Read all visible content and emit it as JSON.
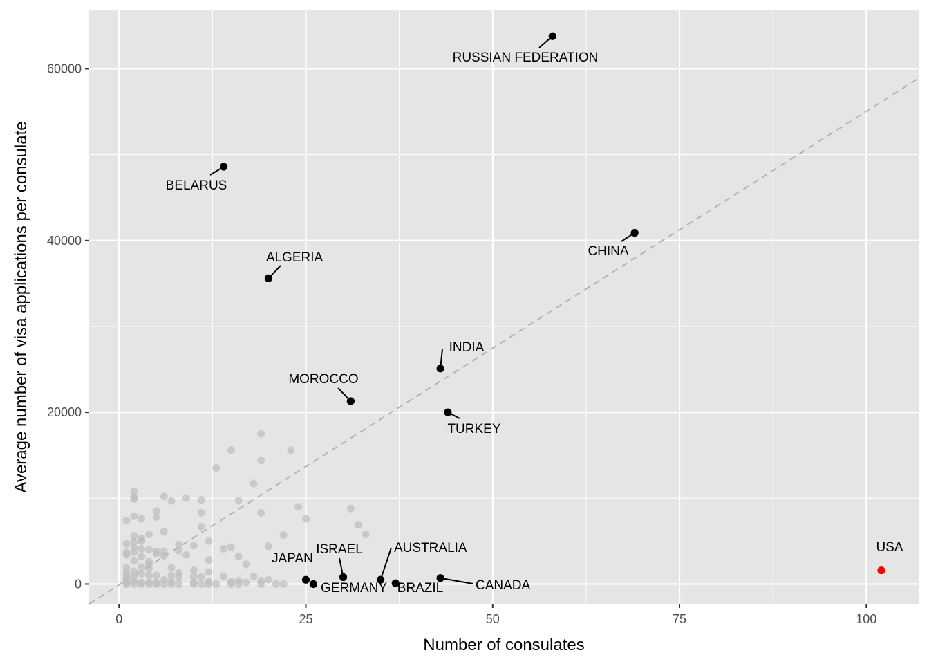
{
  "chart_data": {
    "type": "scatter",
    "title": "",
    "xlabel": "Number of consulates",
    "ylabel": "Average number of visa applications per consulate",
    "xlim": [
      -4,
      107
    ],
    "ylim": [
      -2300,
      66800
    ],
    "x_ticks": [
      0,
      25,
      50,
      75,
      100
    ],
    "y_ticks": [
      0,
      20000,
      40000,
      60000
    ],
    "x_tick_labels": [
      "0",
      "25",
      "50",
      "75",
      "100"
    ],
    "y_tick_labels": [
      "0",
      "20000",
      "40000",
      "60000"
    ],
    "grid": true,
    "legend": "none",
    "colors": {
      "panel": "#e5e5e5",
      "grid": "#ffffff",
      "background_points": "#bdbdbd",
      "highlight_points": "#000000",
      "usa_point": "#ff0000",
      "trend_line": "#b3b3b3"
    },
    "trend_line": {
      "style": "dashed",
      "points": [
        [
          -4,
          -2300
        ],
        [
          107,
          58900
        ]
      ]
    },
    "labeled_points": [
      {
        "label": "RUSSIAN FEDERATION",
        "x": 58,
        "y": 63800
      },
      {
        "label": "BELARUS",
        "x": 14,
        "y": 48600
      },
      {
        "label": "CHINA",
        "x": 69,
        "y": 40900
      },
      {
        "label": "ALGERIA",
        "x": 20,
        "y": 35600
      },
      {
        "label": "INDIA",
        "x": 43,
        "y": 25100
      },
      {
        "label": "MOROCCO",
        "x": 31,
        "y": 21300
      },
      {
        "label": "TURKEY",
        "x": 44,
        "y": 20000
      },
      {
        "label": "JAPAN",
        "x": 25,
        "y": 500
      },
      {
        "label": "GERMANY",
        "x": 26,
        "y": 0
      },
      {
        "label": "ISRAEL",
        "x": 30,
        "y": 800
      },
      {
        "label": "AUSTRALIA",
        "x": 35,
        "y": 500
      },
      {
        "label": "BRAZIL",
        "x": 37,
        "y": 100
      },
      {
        "label": "CANADA",
        "x": 43,
        "y": 700
      },
      {
        "label": "USA",
        "x": 102,
        "y": 1600
      }
    ],
    "background_points": [
      [
        1,
        7400
      ],
      [
        1,
        4700
      ],
      [
        1,
        3700
      ],
      [
        1,
        3400
      ],
      [
        1,
        1900
      ],
      [
        1,
        1300
      ],
      [
        1,
        900
      ],
      [
        1,
        600
      ],
      [
        1,
        300
      ],
      [
        1,
        100
      ],
      [
        1,
        0
      ],
      [
        2,
        10800
      ],
      [
        2,
        10100
      ],
      [
        2,
        9900
      ],
      [
        2,
        7900
      ],
      [
        2,
        5600
      ],
      [
        2,
        4900
      ],
      [
        2,
        4200
      ],
      [
        2,
        3700
      ],
      [
        2,
        2700
      ],
      [
        2,
        1500
      ],
      [
        2,
        900
      ],
      [
        2,
        300
      ],
      [
        2,
        0
      ],
      [
        3,
        7600
      ],
      [
        3,
        5300
      ],
      [
        3,
        5000
      ],
      [
        3,
        4100
      ],
      [
        3,
        3200
      ],
      [
        3,
        2000
      ],
      [
        3,
        1200
      ],
      [
        3,
        200
      ],
      [
        3,
        0
      ],
      [
        4,
        5800
      ],
      [
        4,
        4000
      ],
      [
        4,
        2600
      ],
      [
        4,
        2300
      ],
      [
        4,
        1800
      ],
      [
        4,
        1000
      ],
      [
        4,
        200
      ],
      [
        4,
        0
      ],
      [
        5,
        8500
      ],
      [
        5,
        7800
      ],
      [
        5,
        3800
      ],
      [
        5,
        3500
      ],
      [
        5,
        1000
      ],
      [
        5,
        200
      ],
      [
        5,
        0
      ],
      [
        6,
        10200
      ],
      [
        6,
        6100
      ],
      [
        6,
        3800
      ],
      [
        6,
        3300
      ],
      [
        6,
        500
      ],
      [
        6,
        0
      ],
      [
        7,
        9700
      ],
      [
        7,
        1900
      ],
      [
        7,
        1000
      ],
      [
        7,
        300
      ],
      [
        7,
        0
      ],
      [
        8,
        4600
      ],
      [
        8,
        3900
      ],
      [
        8,
        1300
      ],
      [
        8,
        800
      ],
      [
        8,
        0
      ],
      [
        9,
        10000
      ],
      [
        9,
        3400
      ],
      [
        10,
        4500
      ],
      [
        10,
        1600
      ],
      [
        10,
        900
      ],
      [
        10,
        200
      ],
      [
        10,
        0
      ],
      [
        11,
        9800
      ],
      [
        11,
        8300
      ],
      [
        11,
        6700
      ],
      [
        11,
        800
      ],
      [
        11,
        0
      ],
      [
        12,
        5000
      ],
      [
        12,
        2800
      ],
      [
        12,
        1400
      ],
      [
        12,
        300
      ],
      [
        12,
        0
      ],
      [
        13,
        13500
      ],
      [
        13,
        0
      ],
      [
        14,
        4100
      ],
      [
        14,
        900
      ],
      [
        15,
        15600
      ],
      [
        15,
        4300
      ],
      [
        15,
        300
      ],
      [
        15,
        0
      ],
      [
        16,
        9700
      ],
      [
        16,
        3200
      ],
      [
        16,
        400
      ],
      [
        16,
        0
      ],
      [
        17,
        2300
      ],
      [
        17,
        200
      ],
      [
        18,
        11700
      ],
      [
        18,
        900
      ],
      [
        19,
        17500
      ],
      [
        19,
        14400
      ],
      [
        19,
        8300
      ],
      [
        19,
        400
      ],
      [
        19,
        0
      ],
      [
        20,
        4400
      ],
      [
        20,
        500
      ],
      [
        21,
        0
      ],
      [
        22,
        5700
      ],
      [
        22,
        0
      ],
      [
        23,
        15600
      ],
      [
        24,
        9000
      ],
      [
        25,
        7600
      ],
      [
        31,
        8800
      ],
      [
        32,
        6900
      ],
      [
        33,
        5800
      ]
    ]
  }
}
